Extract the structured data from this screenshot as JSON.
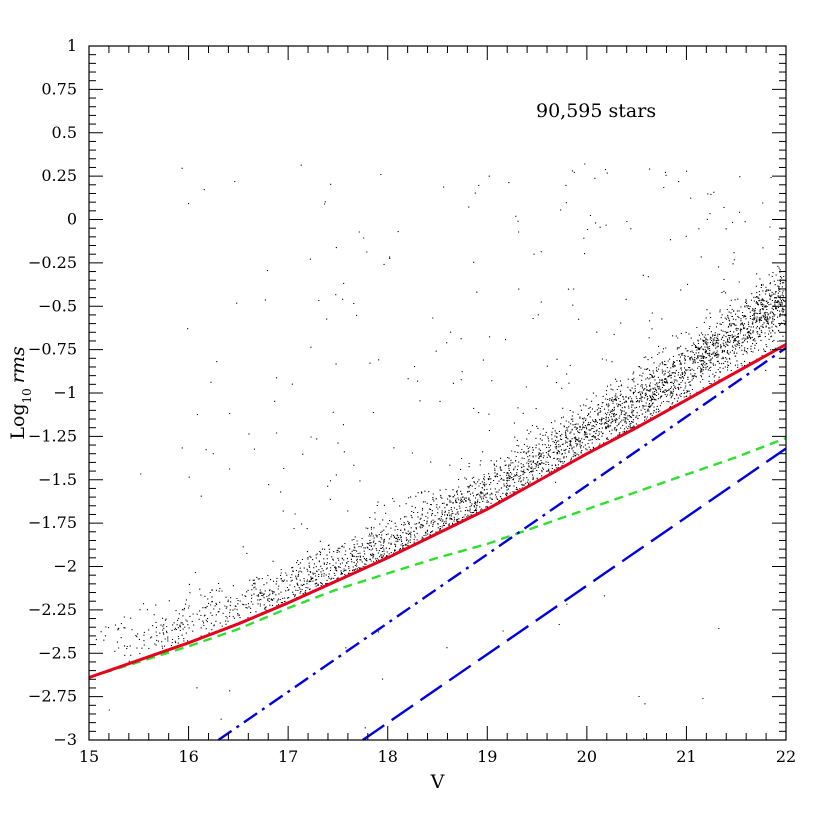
{
  "chart_data": {
    "type": "scatter",
    "title": "",
    "xlabel": "V",
    "ylabel": {
      "prefix": "Log",
      "subscript": "10",
      "italic": "rms"
    },
    "xlim": [
      15,
      22
    ],
    "ylim": [
      -3,
      1
    ],
    "xticks": [
      15,
      16,
      17,
      18,
      19,
      20,
      21,
      22
    ],
    "xtick_labels": [
      "15",
      "16",
      "17",
      "18",
      "19",
      "20",
      "21",
      "22"
    ],
    "yticks": [
      1,
      0.75,
      0.5,
      0.25,
      0,
      -0.25,
      -0.5,
      -0.75,
      -1,
      -1.25,
      -1.5,
      -1.75,
      -2,
      -2.25,
      -2.5,
      -2.75,
      -3
    ],
    "ytick_labels": [
      "1",
      "0.75",
      "0.5",
      "0.25",
      "0",
      "−0.25",
      "−0.5",
      "−0.75",
      "−1",
      "−1.25",
      "−1.5",
      "−1.75",
      "−2",
      "−2.25",
      "−2.5",
      "−2.75",
      "−3"
    ],
    "annotation": "90,595 stars",
    "grid": false,
    "star_count": 90595,
    "scatter_density": {
      "ridge_x": [
        15.0,
        15.5,
        16.0,
        16.5,
        17.0,
        17.5,
        18.0,
        18.5,
        19.0,
        19.5,
        20.0,
        20.5,
        21.0,
        21.5,
        22.0
      ],
      "ridge_y": [
        -2.45,
        -2.4,
        -2.32,
        -2.22,
        -2.12,
        -2.0,
        -1.87,
        -1.72,
        -1.57,
        -1.4,
        -1.22,
        -1.05,
        -0.87,
        -0.65,
        -0.45
      ],
      "color": "#000000"
    },
    "series": [
      {
        "style": "solid",
        "color": "#e8001c",
        "x": [
          15.0,
          15.5,
          16.0,
          16.5,
          17.0,
          17.5,
          18.0,
          18.5,
          19.0,
          19.5,
          20.0,
          20.5,
          21.0,
          21.5,
          22.0
        ],
        "y": [
          -2.64,
          -2.54,
          -2.44,
          -2.33,
          -2.21,
          -2.08,
          -1.95,
          -1.81,
          -1.67,
          -1.51,
          -1.35,
          -1.2,
          -1.04,
          -0.88,
          -0.72
        ]
      },
      {
        "style": "short-dash",
        "color": "#2ee02e",
        "x": [
          15.0,
          15.5,
          16.0,
          16.5,
          17.0,
          17.5,
          18.0,
          18.5,
          19.0,
          19.5,
          20.0,
          20.5,
          21.0,
          21.5,
          22.0
        ],
        "y": [
          -2.64,
          -2.55,
          -2.46,
          -2.36,
          -2.24,
          -2.13,
          -2.04,
          -1.95,
          -1.87,
          -1.77,
          -1.67,
          -1.57,
          -1.47,
          -1.37,
          -1.26
        ]
      },
      {
        "style": "dash-dot",
        "color": "#0000e0",
        "x": [
          16.3,
          22.0
        ],
        "y": [
          -3.0,
          -0.74
        ]
      },
      {
        "style": "long-dash",
        "color": "#0000e0",
        "x": [
          17.75,
          22.0
        ],
        "y": [
          -3.0,
          -1.32
        ]
      }
    ]
  }
}
